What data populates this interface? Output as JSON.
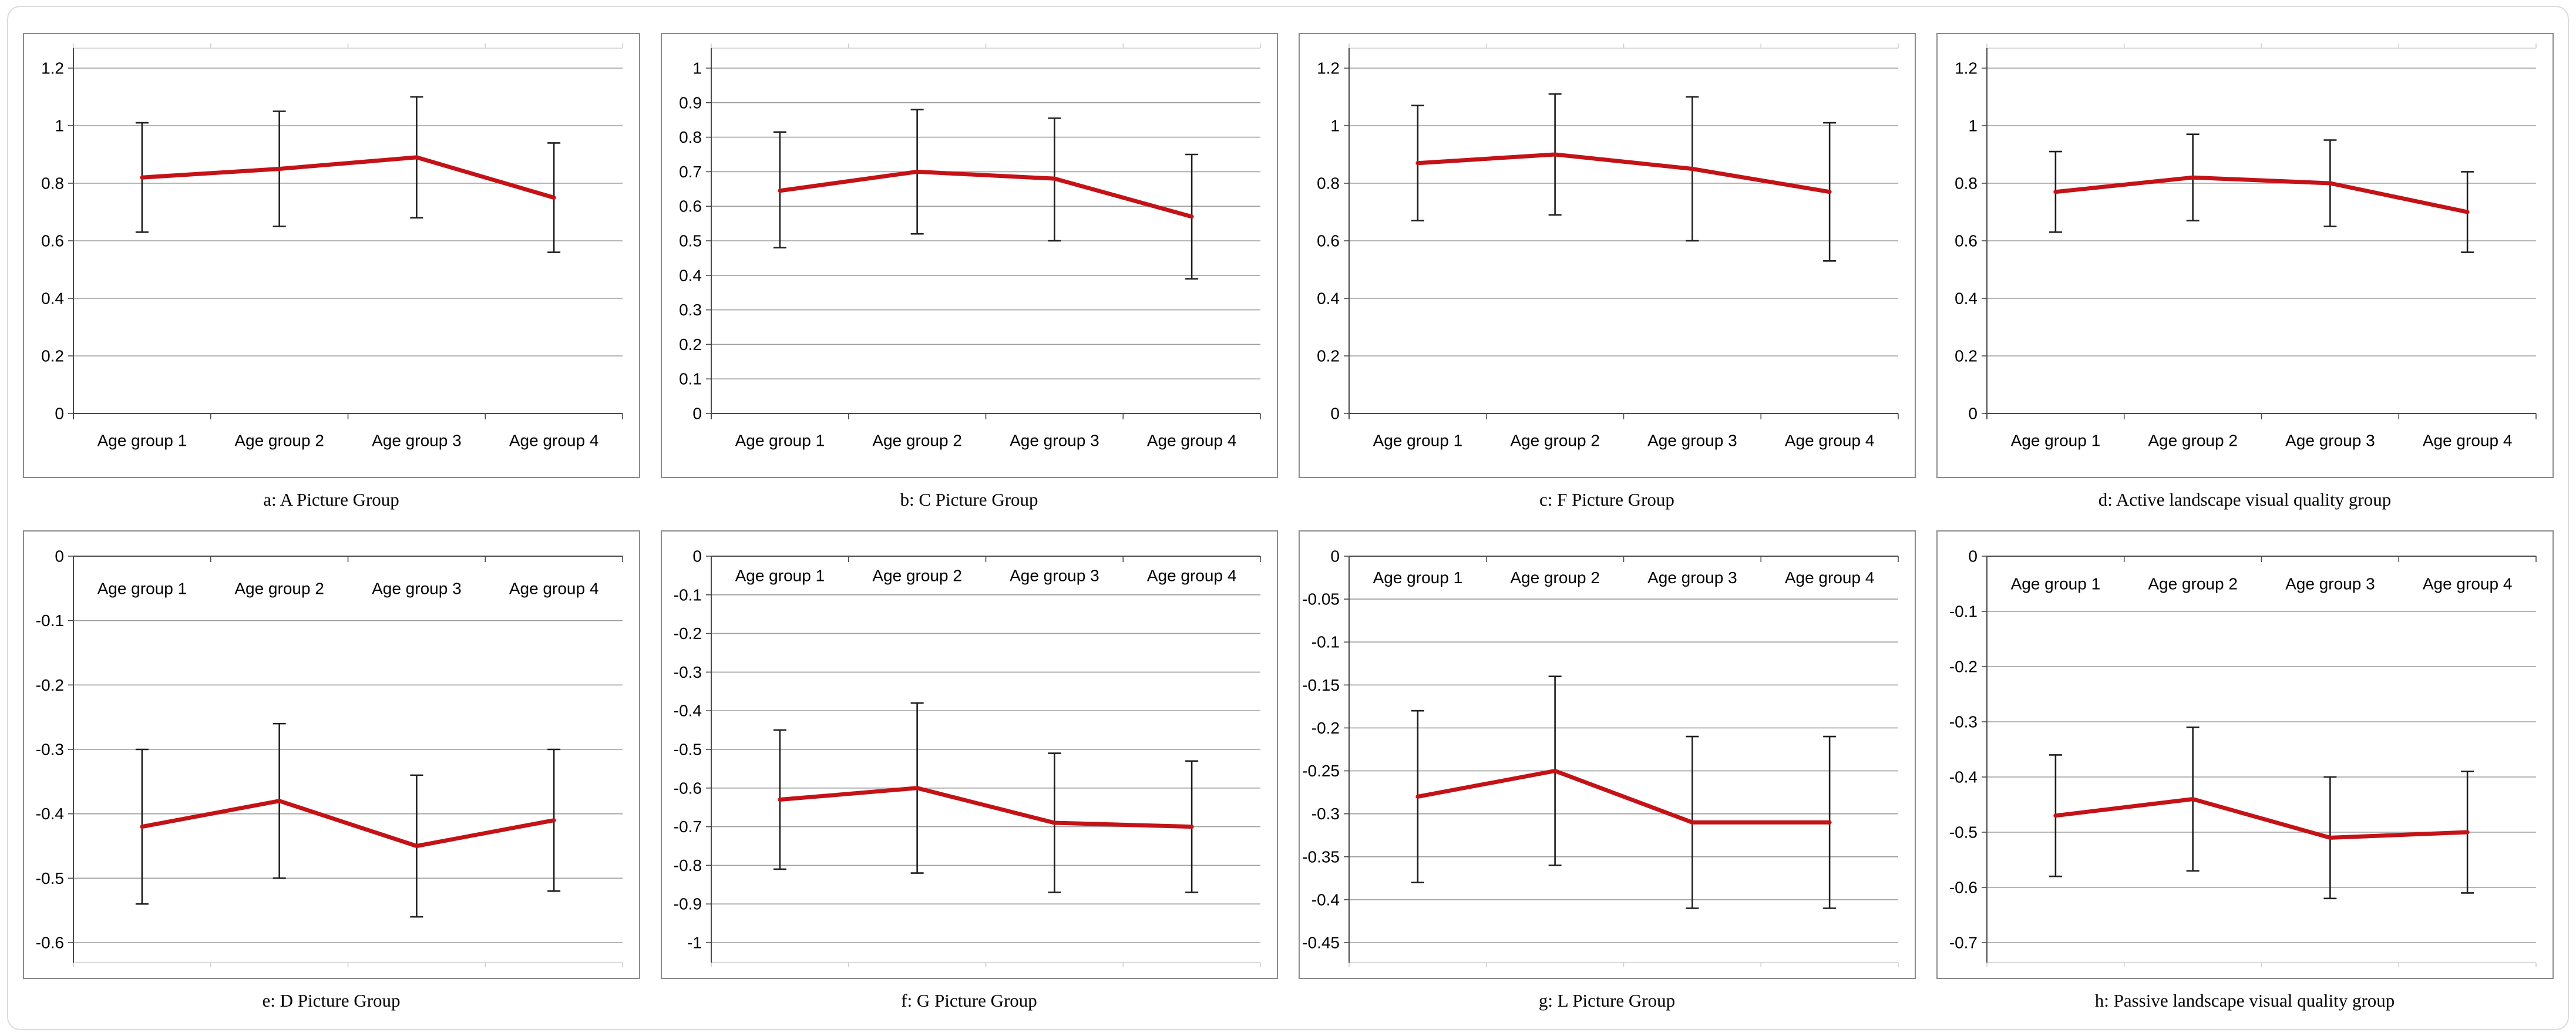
{
  "colors": {
    "trend_line": "#C41217",
    "error_bar": "#1F1F1F",
    "gridline": "#9D9D9D",
    "axis": "#4A4A4A",
    "plot_edge": "#CFCFCF",
    "panel_border": "#8C8C8C",
    "outer_border": "#DCDCDC",
    "label_text": "#000000"
  },
  "chart_data": [
    {
      "id": "a",
      "type": "line",
      "caption": "a: A Picture Group",
      "categories": [
        "Age group 1",
        "Age group 2",
        "Age group 3",
        "Age group 4"
      ],
      "series": [
        {
          "name": "mean",
          "values": [
            0.82,
            0.85,
            0.89,
            0.75
          ]
        }
      ],
      "error_low": [
        0.63,
        0.65,
        0.68,
        0.56
      ],
      "error_high": [
        1.01,
        1.05,
        1.1,
        0.94
      ],
      "ylim": [
        0,
        1.2
      ],
      "ytick_step": 0.2,
      "grid": true,
      "legend": "none"
    },
    {
      "id": "b",
      "type": "line",
      "caption": "b: C Picture Group",
      "categories": [
        "Age group 1",
        "Age group 2",
        "Age group 3",
        "Age group 4"
      ],
      "series": [
        {
          "name": "mean",
          "values": [
            0.645,
            0.7,
            0.68,
            0.57
          ]
        }
      ],
      "error_low": [
        0.48,
        0.52,
        0.5,
        0.39
      ],
      "error_high": [
        0.815,
        0.88,
        0.855,
        0.75
      ],
      "ylim": [
        0,
        1.0
      ],
      "ytick_step": 0.1,
      "grid": true,
      "legend": "none"
    },
    {
      "id": "c",
      "type": "line",
      "caption": "c: F Picture Group",
      "categories": [
        "Age group 1",
        "Age group 2",
        "Age group 3",
        "Age group 4"
      ],
      "series": [
        {
          "name": "mean",
          "values": [
            0.87,
            0.9,
            0.85,
            0.77
          ]
        }
      ],
      "error_low": [
        0.67,
        0.69,
        0.6,
        0.53
      ],
      "error_high": [
        1.07,
        1.11,
        1.1,
        1.01
      ],
      "ylim": [
        0,
        1.2
      ],
      "ytick_step": 0.2,
      "grid": true,
      "legend": "none"
    },
    {
      "id": "d",
      "type": "line",
      "caption": "d: Active landscape visual quality group",
      "categories": [
        "Age group 1",
        "Age group 2",
        "Age group 3",
        "Age group 4"
      ],
      "series": [
        {
          "name": "mean",
          "values": [
            0.77,
            0.82,
            0.8,
            0.7
          ]
        }
      ],
      "error_low": [
        0.63,
        0.67,
        0.65,
        0.56
      ],
      "error_high": [
        0.91,
        0.97,
        0.95,
        0.84
      ],
      "ylim": [
        0,
        1.2
      ],
      "ytick_step": 0.2,
      "grid": true,
      "legend": "none"
    },
    {
      "id": "e",
      "type": "line",
      "caption": "e: D Picture Group",
      "categories": [
        "Age group 1",
        "Age group 2",
        "Age group 3",
        "Age group 4"
      ],
      "series": [
        {
          "name": "mean",
          "values": [
            -0.42,
            -0.38,
            -0.45,
            -0.41
          ]
        }
      ],
      "error_low": [
        -0.54,
        -0.5,
        -0.56,
        -0.52
      ],
      "error_high": [
        -0.3,
        -0.26,
        -0.34,
        -0.3
      ],
      "ylim": [
        -0.6,
        0
      ],
      "ytick_step": 0.1,
      "grid": true,
      "legend": "none"
    },
    {
      "id": "f",
      "type": "line",
      "caption": "f: G Picture Group",
      "categories": [
        "Age group 1",
        "Age group 2",
        "Age group 3",
        "Age group 4"
      ],
      "series": [
        {
          "name": "mean",
          "values": [
            -0.63,
            -0.6,
            -0.69,
            -0.7
          ]
        }
      ],
      "error_low": [
        -0.81,
        -0.82,
        -0.87,
        -0.87
      ],
      "error_high": [
        -0.45,
        -0.38,
        -0.51,
        -0.53
      ],
      "ylim": [
        -1.0,
        0
      ],
      "ytick_step": 0.1,
      "grid": true,
      "legend": "none"
    },
    {
      "id": "g",
      "type": "line",
      "caption": "g: L Picture Group",
      "categories": [
        "Age group 1",
        "Age group 2",
        "Age group 3",
        "Age group 4"
      ],
      "series": [
        {
          "name": "mean",
          "values": [
            -0.28,
            -0.25,
            -0.31,
            -0.31
          ]
        }
      ],
      "error_low": [
        -0.38,
        -0.36,
        -0.41,
        -0.41
      ],
      "error_high": [
        -0.18,
        -0.14,
        -0.21,
        -0.21
      ],
      "ylim": [
        -0.45,
        0
      ],
      "ytick_step": 0.05,
      "grid": true,
      "legend": "none"
    },
    {
      "id": "h",
      "type": "line",
      "caption": "h: Passive landscape visual quality group",
      "categories": [
        "Age group 1",
        "Age group 2",
        "Age group 3",
        "Age group 4"
      ],
      "series": [
        {
          "name": "mean",
          "values": [
            -0.47,
            -0.44,
            -0.51,
            -0.5
          ]
        }
      ],
      "error_low": [
        -0.58,
        -0.57,
        -0.62,
        -0.61
      ],
      "error_high": [
        -0.36,
        -0.31,
        -0.4,
        -0.39
      ],
      "ylim": [
        -0.7,
        0
      ],
      "ytick_step": 0.1,
      "grid": true,
      "legend": "none"
    }
  ]
}
